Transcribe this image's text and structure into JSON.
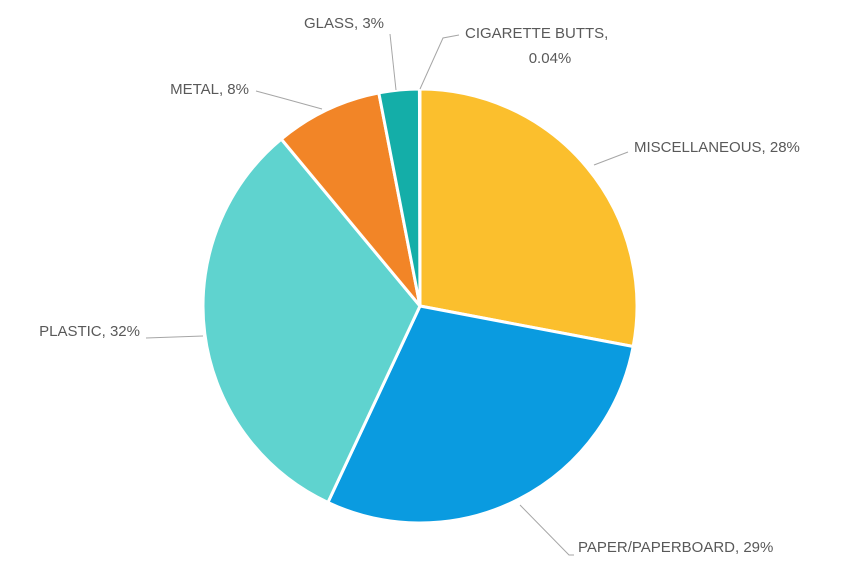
{
  "chart_data": {
    "type": "pie",
    "title": "",
    "legend": "none",
    "slices": [
      {
        "category": "MISCELLANEOUS",
        "value": 28,
        "label": "MISCELLANEOUS, 28%",
        "color": "#fbbf2d"
      },
      {
        "category": "PAPER/PAPERBOARD",
        "value": 29,
        "label": "PAPER/PAPERBOARD, 29%",
        "color": "#0a9be0"
      },
      {
        "category": "PLASTIC",
        "value": 32,
        "label": "PLASTIC, 32%",
        "color": "#5fd3cf"
      },
      {
        "category": "METAL",
        "value": 8,
        "label": "METAL, 8%",
        "color": "#f28527"
      },
      {
        "category": "GLASS",
        "value": 3,
        "label": "GLASS, 3%",
        "color": "#14aea8"
      },
      {
        "category": "CIGARETTE BUTTS",
        "value": 0.04,
        "label_lines": [
          "CIGARETTE BUTTS,",
          "0.04%"
        ],
        "color": "#0e8f96"
      }
    ]
  }
}
